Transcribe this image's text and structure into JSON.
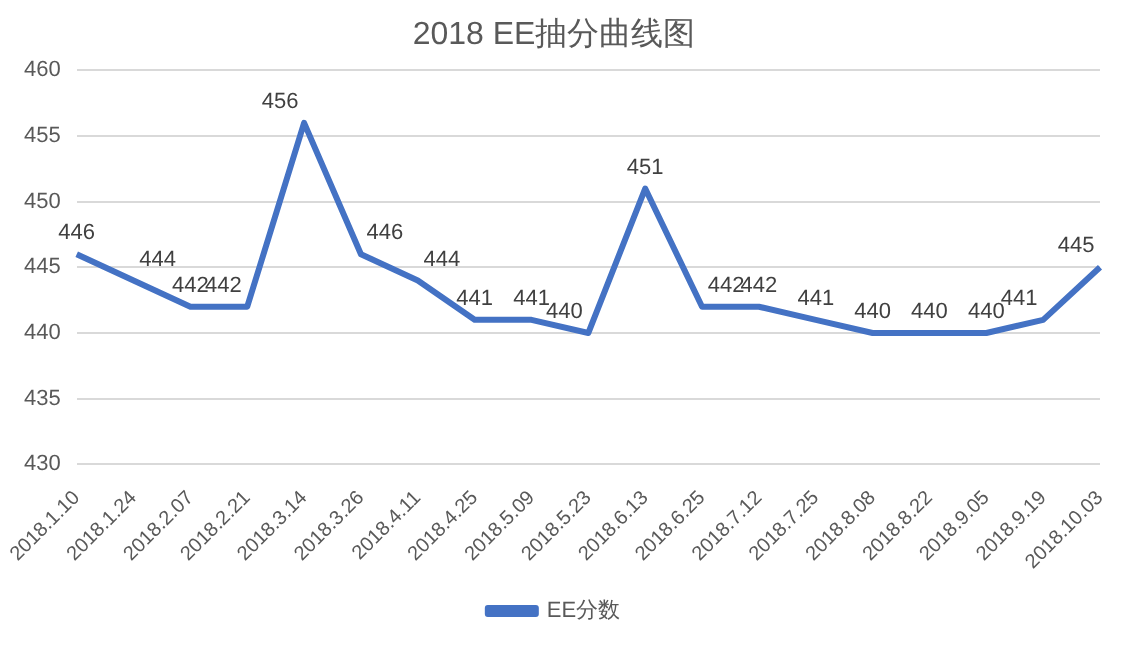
{
  "chart_data": {
    "type": "line",
    "title": "2018 EE抽分曲线图",
    "categories": [
      "2018.1.10",
      "2018.1.24",
      "2018.2.07",
      "2018.2.21",
      "2018.3.14",
      "2018.3.26",
      "2018.4.11",
      "2018.4.25",
      "2018.5.09",
      "2018.5.23",
      "2018.6.13",
      "2018.6.25",
      "2018.7.12",
      "2018.7.25",
      "2018.8.08",
      "2018.8.22",
      "2018.9.05",
      "2018.9.19",
      "2018.10.03"
    ],
    "series": [
      {
        "name": "EE分数",
        "color": "#4472c4",
        "values": [
          446,
          444,
          442,
          442,
          456,
          446,
          444,
          441,
          441,
          440,
          451,
          442,
          442,
          441,
          440,
          440,
          440,
          441,
          445
        ]
      }
    ],
    "ylim": [
      430,
      460
    ],
    "yticks": [
      430,
      435,
      440,
      445,
      450,
      455,
      460
    ],
    "grid": "y",
    "legend": "bottom",
    "marker": "none",
    "line_style": "solid",
    "data_labels": true
  }
}
